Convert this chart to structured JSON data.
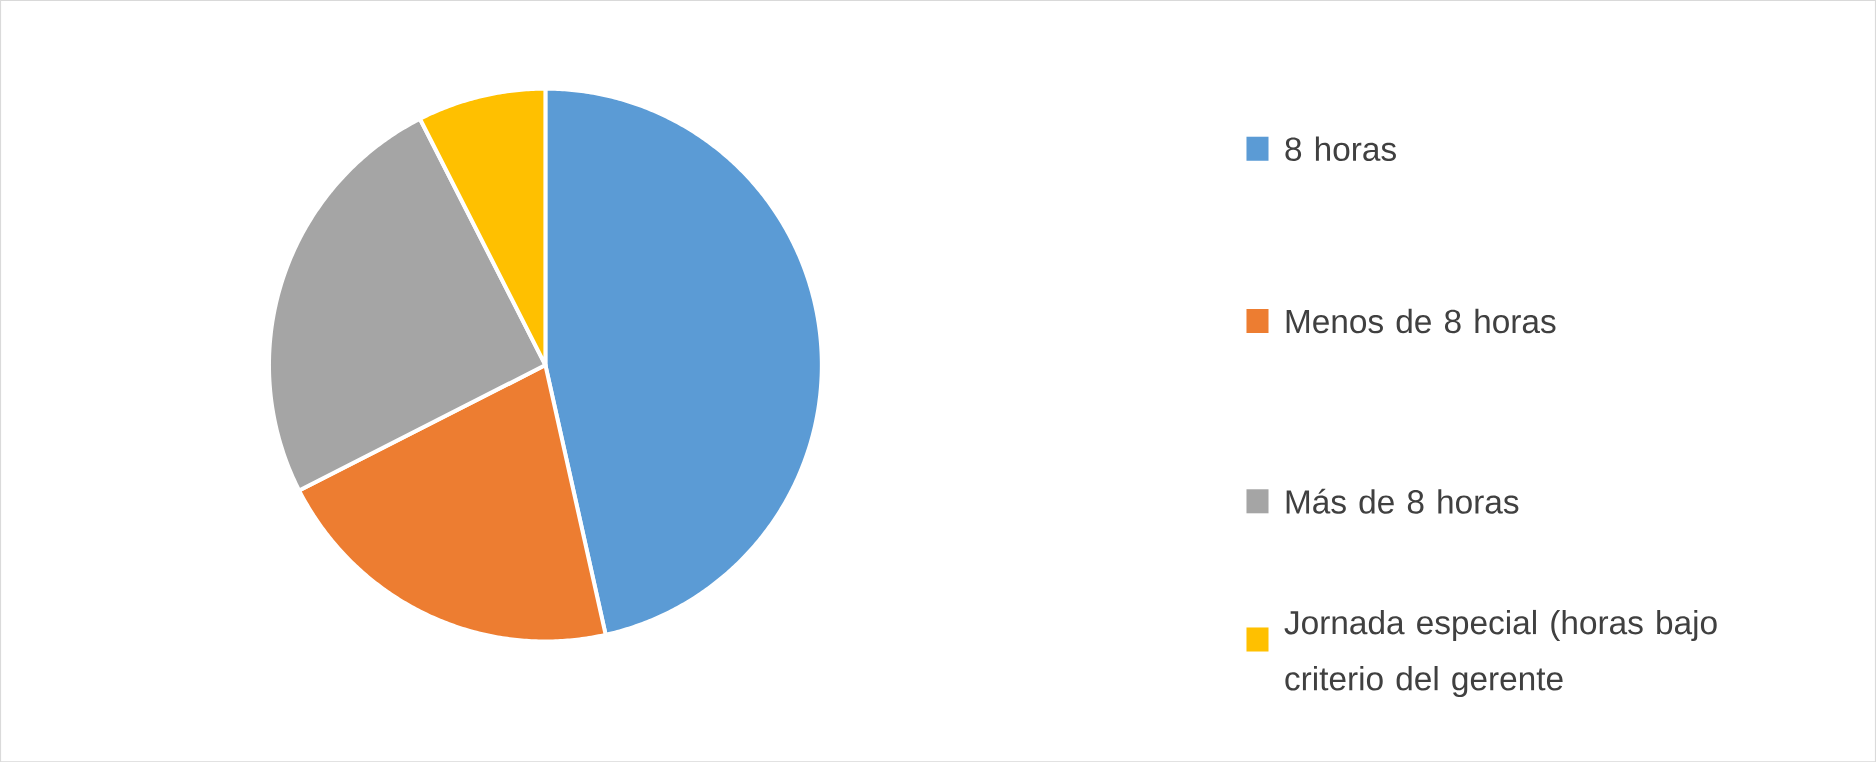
{
  "chart_data": {
    "type": "pie",
    "categories": [
      "8 horas",
      "Menos de 8 horas",
      "Más de 8 horas",
      "Jornada especial (horas bajo criterio del gerente"
    ],
    "values": [
      46.5,
      21,
      25,
      7.5
    ],
    "colors": [
      "#5b9bd5",
      "#ed7d31",
      "#a5a5a5",
      "#ffc000"
    ],
    "legend": "right"
  }
}
